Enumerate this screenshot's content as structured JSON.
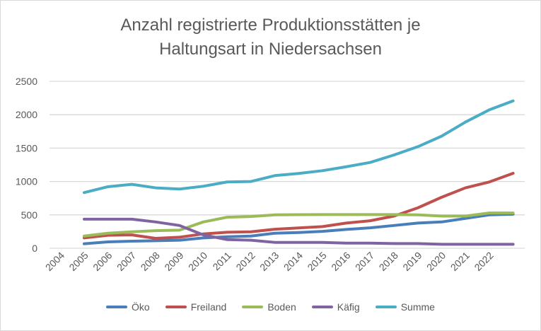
{
  "chart_data": {
    "type": "line",
    "title": "Anzahl registrierte Produktionsstätten je Haltungsart in Niedersachsen",
    "title_lines": [
      "Anzahl registrierte Produktionsstätten je",
      "Haltungsart in Niedersachsen"
    ],
    "xlabel": "",
    "ylabel": "",
    "categories": [
      "2004",
      "2005",
      "2006",
      "2007",
      "2008",
      "2009",
      "2010",
      "2011",
      "2012",
      "2013",
      "2014",
      "2015",
      "2016",
      "2017",
      "2018",
      "2019",
      "2020",
      "2021",
      "2022"
    ],
    "ylim": [
      0,
      2500
    ],
    "yticks": [
      "0",
      "500",
      "1000",
      "1500",
      "2000",
      "2500"
    ],
    "grid": true,
    "legend_position": "bottom",
    "series": [
      {
        "name": "Öko",
        "color": "#4a7ebb",
        "values": [
          67,
          95,
          106,
          113,
          120,
          155,
          172,
          183,
          225,
          236,
          253,
          282,
          306,
          341,
          377,
          394,
          447,
          500,
          510
        ]
      },
      {
        "name": "Freiland",
        "color": "#c0504d",
        "values": [
          155,
          194,
          200,
          148,
          165,
          215,
          240,
          246,
          285,
          305,
          324,
          377,
          412,
          482,
          605,
          764,
          905,
          993,
          1123
        ]
      },
      {
        "name": "Boden",
        "color": "#9bbb59",
        "values": [
          183,
          225,
          246,
          264,
          271,
          394,
          465,
          475,
          500,
          503,
          505,
          505,
          505,
          505,
          500,
          482,
          482,
          528,
          528
        ]
      },
      {
        "name": "Käfig",
        "color": "#8064a2",
        "values": [
          436,
          436,
          436,
          394,
          341,
          200,
          130,
          120,
          88,
          88,
          88,
          77,
          77,
          70,
          70,
          60,
          60,
          60,
          60
        ]
      },
      {
        "name": "Summe",
        "color": "#4bacc6",
        "values": [
          834,
          922,
          957,
          905,
          887,
          929,
          993,
          1000,
          1088,
          1120,
          1162,
          1221,
          1285,
          1397,
          1521,
          1679,
          1890,
          2073,
          2207
        ]
      }
    ]
  }
}
